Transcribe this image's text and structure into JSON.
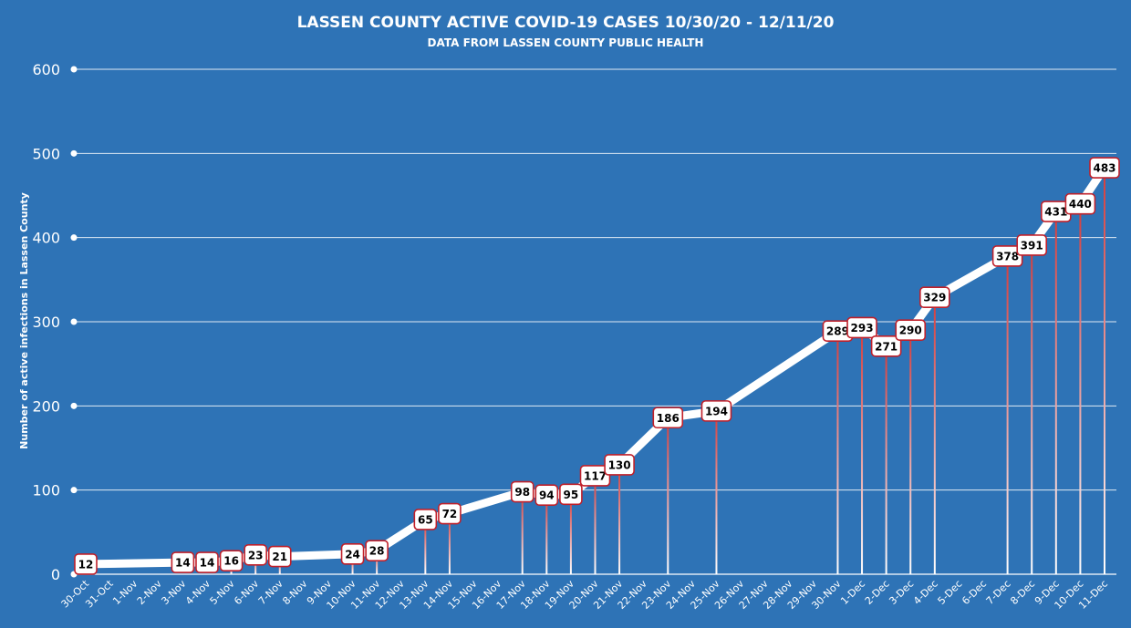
{
  "chart_data": {
    "type": "line",
    "title": "LASSEN COUNTY ACTIVE COVID-19 CASES 10/30/20 - 12/11/20",
    "subtitle": "DATA FROM LASSEN COUNTY PUBLIC HEALTH",
    "ylabel": "Number of active infections in Lassen County",
    "xlabel": "",
    "ylim": [
      0,
      600
    ],
    "yticks": [
      0,
      100,
      200,
      300,
      400,
      500,
      600
    ],
    "grid": true,
    "categories": [
      "30-Oct",
      "31-Oct",
      "1-Nov",
      "2-Nov",
      "3-Nov",
      "4-Nov",
      "5-Nov",
      "6-Nov",
      "7-Nov",
      "8-Nov",
      "9-Nov",
      "10-Nov",
      "11-Nov",
      "12-Nov",
      "13-Nov",
      "14-Nov",
      "15-Nov",
      "16-Nov",
      "17-Nov",
      "18-Nov",
      "19-Nov",
      "20-Nov",
      "21-Nov",
      "22-Nov",
      "23-Nov",
      "24-Nov",
      "25-Nov",
      "26-Nov",
      "27-Nov",
      "28-Nov",
      "29-Nov",
      "30-Nov",
      "1-Dec",
      "2-Dec",
      "3-Dec",
      "4-Dec",
      "5-Dec",
      "6-Dec",
      "7-Dec",
      "8-Dec",
      "9-Dec",
      "10-Dec",
      "11-Dec"
    ],
    "points": [
      {
        "x": "30-Oct",
        "y": 12
      },
      {
        "x": "3-Nov",
        "y": 14
      },
      {
        "x": "4-Nov",
        "y": 14
      },
      {
        "x": "5-Nov",
        "y": 16
      },
      {
        "x": "6-Nov",
        "y": 23
      },
      {
        "x": "7-Nov",
        "y": 21
      },
      {
        "x": "10-Nov",
        "y": 24
      },
      {
        "x": "11-Nov",
        "y": 28
      },
      {
        "x": "13-Nov",
        "y": 65
      },
      {
        "x": "14-Nov",
        "y": 72
      },
      {
        "x": "17-Nov",
        "y": 98
      },
      {
        "x": "18-Nov",
        "y": 94
      },
      {
        "x": "19-Nov",
        "y": 95
      },
      {
        "x": "20-Nov",
        "y": 117
      },
      {
        "x": "21-Nov",
        "y": 130
      },
      {
        "x": "23-Nov",
        "y": 186
      },
      {
        "x": "25-Nov",
        "y": 194
      },
      {
        "x": "30-Nov",
        "y": 289
      },
      {
        "x": "1-Dec",
        "y": 293
      },
      {
        "x": "2-Dec",
        "y": 271
      },
      {
        "x": "3-Dec",
        "y": 290
      },
      {
        "x": "4-Dec",
        "y": 329
      },
      {
        "x": "7-Dec",
        "y": 378
      },
      {
        "x": "8-Dec",
        "y": 391
      },
      {
        "x": "9-Dec",
        "y": 431
      },
      {
        "x": "10-Dec",
        "y": 440
      },
      {
        "x": "11-Dec",
        "y": 483
      }
    ],
    "colors": {
      "background": "#2e73b6",
      "line": "#ffffff",
      "grid": "#ffffff",
      "label_border": "#c0202a",
      "drop_line_top": "#d43a3a",
      "drop_line_bottom": "#ffffff"
    }
  }
}
